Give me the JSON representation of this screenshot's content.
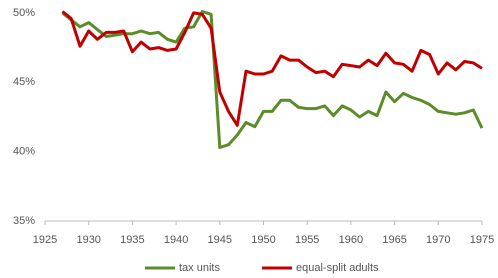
{
  "chart_data": {
    "type": "line",
    "x": [
      1927,
      1928,
      1929,
      1930,
      1931,
      1932,
      1933,
      1934,
      1935,
      1936,
      1937,
      1938,
      1939,
      1940,
      1941,
      1942,
      1943,
      1944,
      1945,
      1946,
      1947,
      1948,
      1949,
      1950,
      1951,
      1952,
      1953,
      1954,
      1955,
      1956,
      1957,
      1958,
      1959,
      1960,
      1961,
      1962,
      1963,
      1964,
      1965,
      1966,
      1967,
      1968,
      1969,
      1970,
      1971,
      1972,
      1973,
      1974,
      1975
    ],
    "series": [
      {
        "name": "tax units",
        "color": "#5b8c2a",
        "values": [
          50.0,
          49.5,
          49.0,
          49.3,
          48.8,
          48.3,
          48.4,
          48.5,
          48.5,
          48.7,
          48.5,
          48.6,
          48.1,
          47.9,
          48.9,
          49.0,
          50.1,
          49.9,
          40.3,
          40.5,
          41.2,
          42.1,
          41.8,
          42.9,
          42.9,
          43.7,
          43.7,
          43.2,
          43.1,
          43.1,
          43.3,
          42.6,
          43.3,
          43.0,
          42.5,
          42.9,
          42.6,
          44.3,
          43.6,
          44.2,
          43.9,
          43.7,
          43.4,
          42.9,
          42.8,
          42.7,
          42.8,
          43.0,
          41.7
        ]
      },
      {
        "name": "equal-split adults",
        "color": "#c00000",
        "values": [
          50.1,
          49.6,
          47.6,
          48.7,
          48.1,
          48.6,
          48.6,
          48.7,
          47.2,
          47.9,
          47.4,
          47.5,
          47.3,
          47.4,
          48.6,
          50.0,
          49.9,
          48.9,
          44.3,
          42.9,
          41.9,
          45.8,
          45.6,
          45.6,
          45.8,
          46.9,
          46.6,
          46.6,
          46.1,
          45.7,
          45.8,
          45.4,
          46.3,
          46.2,
          46.1,
          46.6,
          46.2,
          47.1,
          46.4,
          46.3,
          45.8,
          47.3,
          47.0,
          45.6,
          46.4,
          45.9,
          46.5,
          46.4,
          46.0
        ]
      }
    ],
    "xlim": [
      1925,
      1975
    ],
    "xticks": [
      1925,
      1930,
      1935,
      1940,
      1945,
      1950,
      1955,
      1960,
      1965,
      1970,
      1975
    ],
    "ylim": [
      35,
      50.5
    ],
    "yticks": [
      {
        "value": 35,
        "label": "35%"
      },
      {
        "value": 40,
        "label": "40%"
      },
      {
        "value": 45,
        "label": "45%"
      },
      {
        "value": 50,
        "label": "50%"
      }
    ],
    "legend": "bottom"
  }
}
